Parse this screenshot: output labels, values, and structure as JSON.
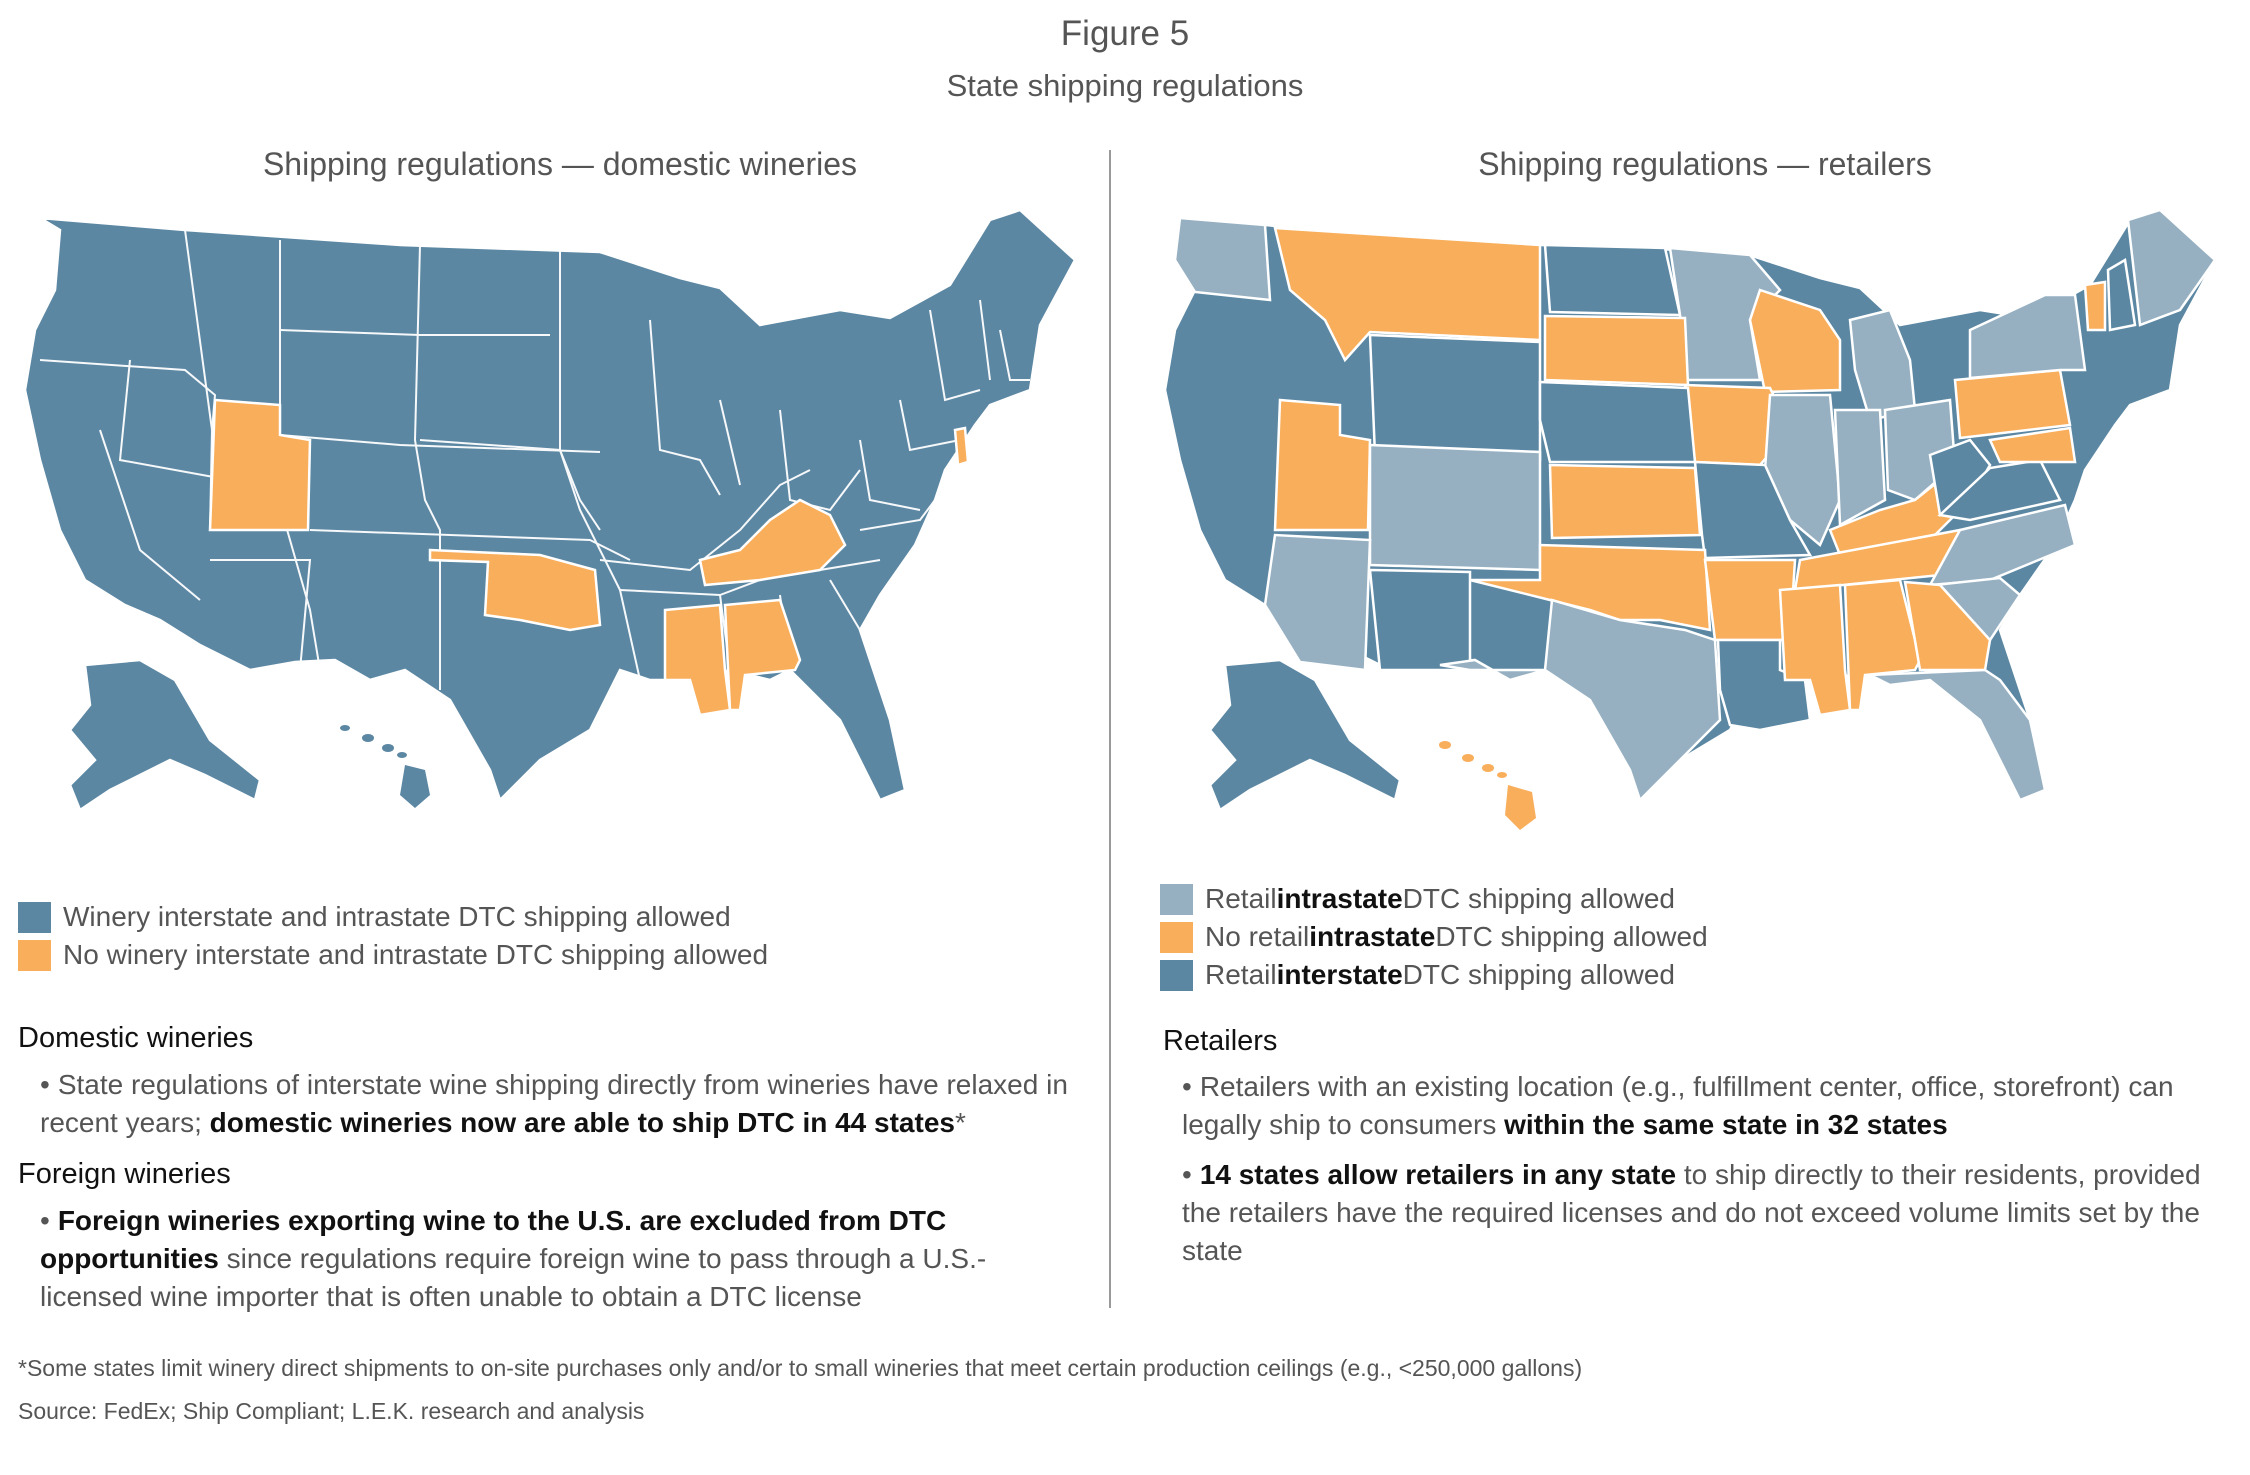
{
  "figure": {
    "title": "Figure 5",
    "subtitle": "State shipping regulations"
  },
  "colors": {
    "dark": "#5b87a3",
    "light": "#96b0c2",
    "orange": "#f8ae5b"
  },
  "left_panel": {
    "title": "Shipping regulations — domestic wineries",
    "legend": [
      {
        "label": "Winery interstate and intrastate DTC shipping allowed",
        "color": "#5b87a3"
      },
      {
        "label": "No winery interstate and intrastate DTC shipping allowed",
        "color": "#f8ae5b"
      }
    ],
    "map_regions": [
      {
        "name": "US base",
        "category": "dark"
      },
      {
        "name": "Utah",
        "category": "orange"
      },
      {
        "name": "Oklahoma",
        "category": "orange"
      },
      {
        "name": "Kentucky",
        "category": "orange"
      },
      {
        "name": "Mississippi",
        "category": "orange"
      },
      {
        "name": "Alabama",
        "category": "orange"
      },
      {
        "name": "Delaware",
        "category": "orange"
      },
      {
        "name": "Alaska",
        "category": "dark"
      },
      {
        "name": "Hawaii",
        "category": "dark"
      }
    ],
    "sections": [
      {
        "heading": "Domestic wineries",
        "bullets": [
          {
            "normal": "State regulations of interstate wine shipping directly from wineries have relaxed in recent years; ",
            "bold": "domestic wineries now are able to ship DTC in 44 states",
            "suffix": "*"
          }
        ]
      },
      {
        "heading": "Foreign wineries",
        "bullets": [
          {
            "bold": "Foreign wineries exporting wine to the U.S. are excluded from DTC opportunities",
            "normal": " since regulations require foreign wine to pass through a U.S.-licensed wine importer that is often unable to obtain a DTC license"
          }
        ]
      }
    ]
  },
  "right_panel": {
    "title": "Shipping regulations — retailers",
    "legend": [
      {
        "pre": "Retail ",
        "bold": "intrastate",
        "post": " DTC shipping allowed",
        "color": "#96b0c2"
      },
      {
        "pre": "No retail ",
        "bold": "intrastate",
        "post": " DTC shipping allowed",
        "color": "#f8ae5b"
      },
      {
        "pre": "Retail ",
        "bold": "interstate",
        "post": " DTC shipping allowed",
        "color": "#5b87a3"
      }
    ],
    "map_regions": [
      {
        "name": "West coast",
        "category": "dark"
      },
      {
        "name": "Washington",
        "category": "light"
      },
      {
        "name": "Montana",
        "category": "orange"
      },
      {
        "name": "North Dakota",
        "category": "dark"
      },
      {
        "name": "Minnesota",
        "category": "light"
      },
      {
        "name": "Wisconsin",
        "category": "orange"
      },
      {
        "name": "Michigan",
        "category": "light"
      },
      {
        "name": "Wyoming",
        "category": "dark"
      },
      {
        "name": "South Dakota",
        "category": "orange"
      },
      {
        "name": "Iowa",
        "category": "orange"
      },
      {
        "name": "Illinois",
        "category": "light"
      },
      {
        "name": "Indiana",
        "category": "light"
      },
      {
        "name": "Ohio",
        "category": "light"
      },
      {
        "name": "Pennsylvania",
        "category": "orange"
      },
      {
        "name": "New York",
        "category": "light"
      },
      {
        "name": "Vermont",
        "category": "orange"
      },
      {
        "name": "New Hampshire",
        "category": "dark"
      },
      {
        "name": "Maine",
        "category": "light"
      },
      {
        "name": "Utah",
        "category": "orange"
      },
      {
        "name": "Colorado",
        "category": "light"
      },
      {
        "name": "Nebraska",
        "category": "dark"
      },
      {
        "name": "Kansas",
        "category": "orange"
      },
      {
        "name": "Missouri",
        "category": "dark"
      },
      {
        "name": "Kentucky",
        "category": "orange"
      },
      {
        "name": "West Virginia",
        "category": "dark"
      },
      {
        "name": "Virginia",
        "category": "dark"
      },
      {
        "name": "Maryland",
        "category": "orange"
      },
      {
        "name": "Arizona",
        "category": "light"
      },
      {
        "name": "New Mexico",
        "category": "dark"
      },
      {
        "name": "Oklahoma",
        "category": "orange"
      },
      {
        "name": "Arkansas",
        "category": "orange"
      },
      {
        "name": "Tennessee",
        "category": "orange"
      },
      {
        "name": "North Carolina",
        "category": "light"
      },
      {
        "name": "South Carolina",
        "category": "light"
      },
      {
        "name": "Texas",
        "category": "light"
      },
      {
        "name": "Louisiana",
        "category": "dark"
      },
      {
        "name": "Mississippi",
        "category": "orange"
      },
      {
        "name": "Alabama",
        "category": "orange"
      },
      {
        "name": "Georgia",
        "category": "orange"
      },
      {
        "name": "Florida",
        "category": "light"
      },
      {
        "name": "Alaska",
        "category": "dark"
      },
      {
        "name": "Hawaii",
        "category": "orange"
      }
    ],
    "sections": [
      {
        "heading": "Retailers",
        "bullets": [
          {
            "normal": "Retailers with an existing location (e.g., fulfillment center, office, storefront) can legally ship to consumers ",
            "bold": "within the same state in 32 states",
            "suffix": ""
          },
          {
            "bold": "14 states allow retailers in any state",
            "normal": " to ship directly to their residents, provided the retailers have the required licenses and do not exceed volume limits set by the state"
          }
        ]
      }
    ]
  },
  "footnotes": {
    "note": "*Some states limit winery direct shipments to on-site purchases only and/or to small wineries that meet certain production ceilings (e.g., <250,000 gallons)",
    "source": "Source: FedEx; Ship Compliant; L.E.K. research and analysis"
  }
}
